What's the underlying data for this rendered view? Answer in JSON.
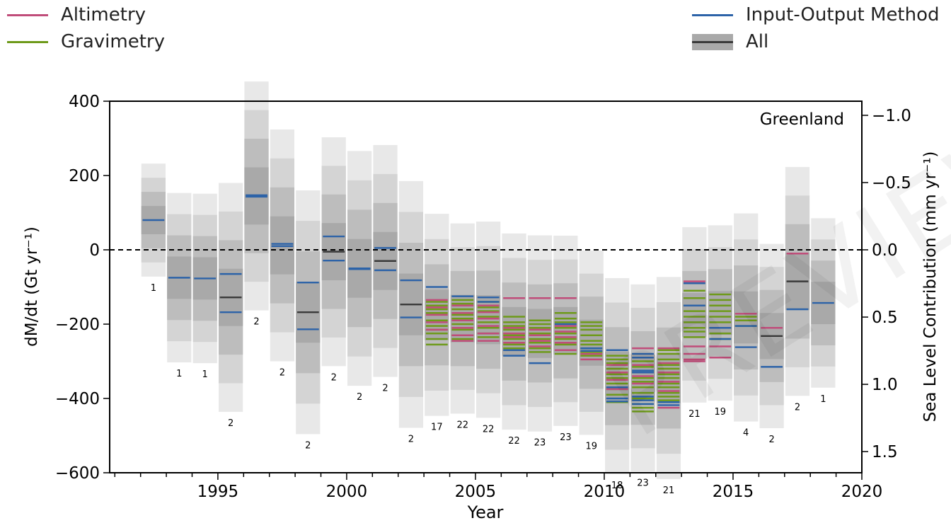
{
  "colors": {
    "altimetry": "#c04d7a",
    "gravimetry": "#6e9a1a",
    "iom": "#2d63a8",
    "all": "#3a3a3a",
    "band1": "#e8e8e8",
    "band2": "#d4d4d4",
    "band3": "#bdbdbd",
    "band4": "#a9a9a9"
  },
  "legend": {
    "altimetry": "Altimetry",
    "gravimetry": "Gravimetry",
    "iom": "Input-Output Method",
    "all": "All"
  },
  "watermark": "PREVIEW",
  "chart_data": {
    "type": "bar",
    "title": "Greenland",
    "xlabel": "Year",
    "ylabel": "dM/dt (Gt yr⁻¹)",
    "y2label": "Sea Level Contribution (mm yr⁻¹)",
    "xlim": [
      1990.8,
      2020
    ],
    "ylim": [
      -600,
      400
    ],
    "xticks": [
      1995,
      2000,
      2005,
      2010,
      2015,
      2020
    ],
    "yticks": [
      -600,
      -400,
      -200,
      0,
      200,
      400
    ],
    "y2ticks": [
      -1.0,
      -0.5,
      0.0,
      0.5,
      1.0,
      1.5
    ],
    "y2_per_gt": -0.002762,
    "zero_line": "dashed",
    "columns": [
      {
        "year": 1992.5,
        "mean": 80,
        "sd": 38,
        "n": "1",
        "alt": [],
        "grav": [],
        "iom": [
          80
        ]
      },
      {
        "year": 1993.5,
        "mean": -75,
        "sd": 57,
        "n": "1",
        "alt": [],
        "grav": [],
        "iom": [
          -75
        ]
      },
      {
        "year": 1994.5,
        "mean": -77,
        "sd": 57,
        "n": "1",
        "alt": [],
        "grav": [],
        "iom": [
          -77
        ]
      },
      {
        "year": 1995.5,
        "mean": -128,
        "sd": 77,
        "n": "2",
        "alt": [],
        "grav": [],
        "iom": [
          -65,
          -168
        ],
        "all": [
          -128
        ]
      },
      {
        "year": 1996.5,
        "mean": 145,
        "sd": 77,
        "n": "2",
        "alt": [],
        "grav": [],
        "iom": [
          143,
          147
        ]
      },
      {
        "year": 1997.5,
        "mean": 12,
        "sd": 78,
        "n": "2",
        "alt": [],
        "grav": [],
        "iom": [
          10,
          16
        ]
      },
      {
        "year": 1998.5,
        "mean": -168,
        "sd": 82,
        "n": "2",
        "alt": [],
        "grav": [],
        "iom": [
          -88,
          -214
        ],
        "all": [
          -168
        ]
      },
      {
        "year": 1999.5,
        "mean": -5,
        "sd": 77,
        "n": "2",
        "alt": [],
        "grav": [],
        "iom": [
          36,
          -29
        ],
        "all": [
          -5
        ]
      },
      {
        "year": 2000.5,
        "mean": -50,
        "sd": 79,
        "n": "2",
        "alt": [],
        "grav": [],
        "iom": [
          -50,
          -52
        ]
      },
      {
        "year": 2001.5,
        "mean": -30,
        "sd": 78,
        "n": "2",
        "alt": [],
        "grav": [],
        "iom": [
          5,
          -55
        ],
        "all": [
          -30
        ]
      },
      {
        "year": 2002.5,
        "mean": -147,
        "sd": 83,
        "n": "2",
        "alt": [],
        "grav": [],
        "iom": [
          -82,
          -182
        ],
        "all": [
          -147
        ]
      },
      {
        "year": 2003.5,
        "mean": -175,
        "sd": 68,
        "n": "17",
        "alt": [
          -135,
          -155,
          -175,
          -195,
          -215
        ],
        "grav": [
          -140,
          -150,
          -160,
          -170,
          -190,
          -205,
          -215,
          -225,
          -240,
          -255
        ],
        "iom": [
          -100
        ]
      },
      {
        "year": 2004.5,
        "mean": -185,
        "sd": 64,
        "n": "22",
        "alt": [
          -150,
          -170,
          -190,
          -210,
          -230,
          -245
        ],
        "grav": [
          -135,
          -145,
          -160,
          -175,
          -185,
          -200,
          -215,
          -230,
          -240
        ],
        "iom": [
          -125
        ]
      },
      {
        "year": 2005.5,
        "mean": -188,
        "sd": 66,
        "n": "22",
        "alt": [
          -150,
          -168,
          -185,
          -205,
          -225,
          -245
        ],
        "grav": [
          -140,
          -155,
          -165,
          -180,
          -195,
          -210,
          -225,
          -235
        ],
        "iom": [
          -128,
          -140
        ]
      },
      {
        "year": 2006.5,
        "mean": -220,
        "sd": 66,
        "n": "22",
        "alt": [
          -130,
          -210,
          -225,
          -235,
          -250
        ],
        "grav": [
          -180,
          -195,
          -205,
          -215,
          -230,
          -240,
          -255,
          -265
        ],
        "iom": [
          -270,
          -285
        ]
      },
      {
        "year": 2007.5,
        "mean": -225,
        "sd": 66,
        "n": "23",
        "alt": [
          -130,
          -215,
          -230,
          -245,
          -260
        ],
        "grav": [
          -190,
          -200,
          -210,
          -225,
          -240,
          -250,
          -265,
          -275
        ],
        "iom": [
          -305
        ]
      },
      {
        "year": 2008.5,
        "mean": -218,
        "sd": 64,
        "n": "23",
        "alt": [
          -130,
          -205,
          -220,
          -235,
          -250,
          -270
        ],
        "grav": [
          -170,
          -185,
          -195,
          -210,
          -225,
          -240,
          -255,
          -280
        ],
        "iom": [
          -200
        ]
      },
      {
        "year": 2009.5,
        "mean": -250,
        "sd": 62,
        "n": "19",
        "alt": [
          -280,
          -295
        ],
        "grav": [
          -195,
          -205,
          -215,
          -230,
          -245,
          -255,
          -265,
          -275,
          -285
        ],
        "iom": [
          -265,
          -272
        ]
      },
      {
        "year": 2010.5,
        "mean": -340,
        "sd": 66,
        "n": "18",
        "alt": [
          -310,
          -330,
          -350,
          -375
        ],
        "grav": [
          -285,
          -295,
          -305,
          -320,
          -335,
          -345,
          -360,
          -375,
          -390,
          -410
        ],
        "iom": [
          -270,
          -370,
          -400,
          -408
        ]
      },
      {
        "year": 2011.5,
        "mean": -345,
        "sd": 63,
        "n": "23",
        "alt": [
          -265,
          -310,
          -340,
          -360
        ],
        "grav": [
          -300,
          -315,
          -330,
          -345,
          -355,
          -370,
          -385,
          -400,
          -415,
          -425,
          -435
        ],
        "iom": [
          -280,
          -290,
          -325,
          -330,
          -395,
          -405,
          -415
        ]
      },
      {
        "year": 2012.5,
        "mean": -345,
        "sd": 68,
        "n": "21",
        "alt": [
          -265,
          -305,
          -330,
          -355,
          -380,
          -425
        ],
        "grav": [
          -270,
          -280,
          -295,
          -310,
          -320,
          -335,
          -345,
          -360,
          -370,
          -385,
          -395,
          -405
        ],
        "iom": [
          -410,
          -418
        ]
      },
      {
        "year": 2013.5,
        "mean": -175,
        "sd": 59,
        "n": "21",
        "alt": [
          -85,
          -260,
          -280,
          -295,
          -300
        ],
        "grav": [
          -110,
          -130,
          -150,
          -165,
          -180,
          -195,
          -210,
          -220,
          -235
        ],
        "iom": [
          -90,
          -150
        ]
      },
      {
        "year": 2014.5,
        "mean": -170,
        "sd": 59,
        "n": "19",
        "alt": [
          -260,
          -290
        ],
        "grav": [
          -120,
          -135,
          -150,
          -165,
          -180,
          -195,
          -210,
          -225,
          -240
        ],
        "iom": [
          -210,
          -240
        ]
      },
      {
        "year": 2015.5,
        "mean": -182,
        "sd": 70,
        "n": "4",
        "alt": [
          -172
        ],
        "grav": [
          -180,
          -190,
          -205
        ],
        "iom": [
          -205,
          -262
        ]
      },
      {
        "year": 2016.5,
        "mean": -232,
        "sd": 62,
        "n": "2",
        "alt": [
          -210
        ],
        "grav": [],
        "iom": [
          -315
        ],
        "all": [
          -232
        ]
      },
      {
        "year": 2017.5,
        "mean": -85,
        "sd": 77,
        "n": "2",
        "alt": [
          -10
        ],
        "grav": [],
        "iom": [
          -160
        ],
        "all": [
          -85
        ]
      },
      {
        "year": 2018.5,
        "mean": -143,
        "sd": 57,
        "n": "1",
        "alt": [],
        "grav": [],
        "iom": [
          -143
        ]
      }
    ]
  }
}
